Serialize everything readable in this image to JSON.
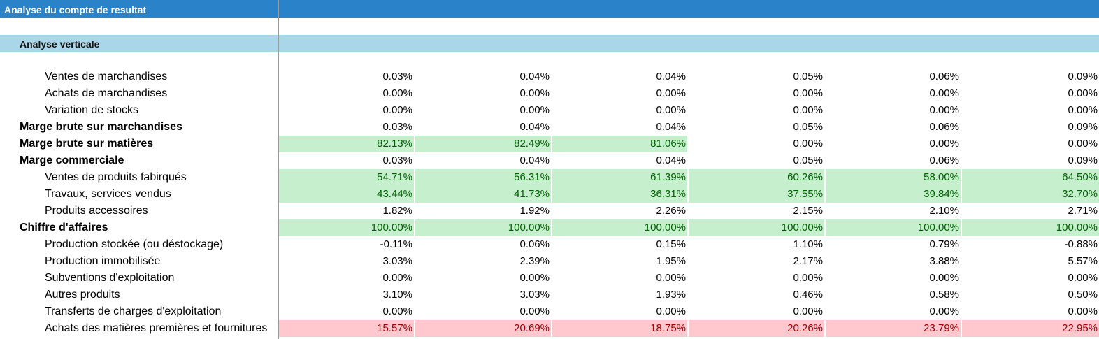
{
  "sheet": {
    "title": "Analyse du compte de resultat",
    "section": "Analyse verticale"
  },
  "colors": {
    "title_bg": "#2a82c8",
    "section_bg": "#a9d6e8",
    "good_bg": "#c6efce",
    "good_text": "#006100",
    "bad_bg": "#ffc7ce",
    "bad_text": "#9c0006"
  },
  "rows": [
    {
      "label": "Ventes de marchandises",
      "bold": false,
      "values": [
        "0.03%",
        "0.04%",
        "0.04%",
        "0.05%",
        "0.06%",
        "0.09%"
      ],
      "fmt": [
        "",
        "",
        "",
        "",
        "",
        ""
      ]
    },
    {
      "label": "Achats de marchandises",
      "bold": false,
      "values": [
        "0.00%",
        "0.00%",
        "0.00%",
        "0.00%",
        "0.00%",
        "0.00%"
      ],
      "fmt": [
        "",
        "",
        "",
        "",
        "",
        ""
      ]
    },
    {
      "label": "Variation de stocks",
      "bold": false,
      "values": [
        "0.00%",
        "0.00%",
        "0.00%",
        "0.00%",
        "0.00%",
        "0.00%"
      ],
      "fmt": [
        "",
        "",
        "",
        "",
        "",
        ""
      ]
    },
    {
      "label": "Marge brute sur marchandises",
      "bold": true,
      "values": [
        "0.03%",
        "0.04%",
        "0.04%",
        "0.05%",
        "0.06%",
        "0.09%"
      ],
      "fmt": [
        "",
        "",
        "",
        "",
        "",
        ""
      ]
    },
    {
      "label": "Marge brute sur matières",
      "bold": true,
      "values": [
        "82.13%",
        "82.49%",
        "81.06%",
        "0.00%",
        "0.00%",
        "0.00%"
      ],
      "fmt": [
        "green",
        "green",
        "green",
        "",
        "",
        ""
      ]
    },
    {
      "label": "Marge commerciale",
      "bold": true,
      "values": [
        "0.03%",
        "0.04%",
        "0.04%",
        "0.05%",
        "0.06%",
        "0.09%"
      ],
      "fmt": [
        "",
        "",
        "",
        "",
        "",
        ""
      ]
    },
    {
      "label": "Ventes de produits fabirqués",
      "bold": false,
      "values": [
        "54.71%",
        "56.31%",
        "61.39%",
        "60.26%",
        "58.00%",
        "64.50%"
      ],
      "fmt": [
        "green",
        "green",
        "green",
        "green",
        "green",
        "green"
      ]
    },
    {
      "label": "Travaux, services vendus",
      "bold": false,
      "values": [
        "43.44%",
        "41.73%",
        "36.31%",
        "37.55%",
        "39.84%",
        "32.70%"
      ],
      "fmt": [
        "green",
        "green",
        "green",
        "green",
        "green",
        "green"
      ]
    },
    {
      "label": "Produits accessoires",
      "bold": false,
      "values": [
        "1.82%",
        "1.92%",
        "2.26%",
        "2.15%",
        "2.10%",
        "2.71%"
      ],
      "fmt": [
        "",
        "",
        "",
        "",
        "",
        ""
      ]
    },
    {
      "label": "Chiffre d'affaires",
      "bold": true,
      "values": [
        "100.00%",
        "100.00%",
        "100.00%",
        "100.00%",
        "100.00%",
        "100.00%"
      ],
      "fmt": [
        "green",
        "green",
        "green",
        "green",
        "green",
        "green"
      ]
    },
    {
      "label": "Production stockée (ou déstockage)",
      "bold": false,
      "values": [
        "-0.11%",
        "0.06%",
        "0.15%",
        "1.10%",
        "0.79%",
        "-0.88%"
      ],
      "fmt": [
        "",
        "",
        "",
        "",
        "",
        ""
      ]
    },
    {
      "label": "Production immobilisée",
      "bold": false,
      "values": [
        "3.03%",
        "2.39%",
        "1.95%",
        "2.17%",
        "3.88%",
        "5.57%"
      ],
      "fmt": [
        "",
        "",
        "",
        "",
        "",
        ""
      ]
    },
    {
      "label": "Subventions d'exploitation",
      "bold": false,
      "values": [
        "0.00%",
        "0.00%",
        "0.00%",
        "0.00%",
        "0.00%",
        "0.00%"
      ],
      "fmt": [
        "",
        "",
        "",
        "",
        "",
        ""
      ]
    },
    {
      "label": "Autres produits",
      "bold": false,
      "values": [
        "3.10%",
        "3.03%",
        "1.93%",
        "0.46%",
        "0.58%",
        "0.50%"
      ],
      "fmt": [
        "",
        "",
        "",
        "",
        "",
        ""
      ]
    },
    {
      "label": "Transferts de charges d'exploitation",
      "bold": false,
      "values": [
        "0.00%",
        "0.00%",
        "0.00%",
        "0.00%",
        "0.00%",
        "0.00%"
      ],
      "fmt": [
        "",
        "",
        "",
        "",
        "",
        ""
      ]
    },
    {
      "label": "Achats des matières premières et fournitures",
      "bold": false,
      "values": [
        "15.57%",
        "20.69%",
        "18.75%",
        "20.26%",
        "23.79%",
        "22.95%"
      ],
      "fmt": [
        "red",
        "red",
        "red",
        "red",
        "red",
        "red"
      ]
    }
  ]
}
